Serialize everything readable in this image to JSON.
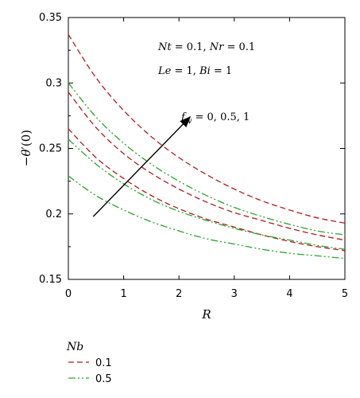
{
  "chart_data": {
    "type": "line",
    "xlabel": "R",
    "ylabel_parts": [
      "−",
      "θ",
      "′(0)"
    ],
    "xlim": [
      0,
      5
    ],
    "ylim": [
      0.15,
      0.35
    ],
    "xticks": [
      "0",
      "1",
      "2",
      "3",
      "4",
      "5"
    ],
    "yticks": [
      "0.15",
      "0.2",
      "0.25",
      "0.3",
      "0.35"
    ],
    "grid": false,
    "legend_title": "Nb",
    "legend_position": "below-left",
    "legend": [
      {
        "label": "0.1",
        "color": "#b31b1b",
        "dash": "dashed"
      },
      {
        "label": "0.5",
        "color": "#2aa52a",
        "dash": "dash-dot-dot"
      }
    ],
    "annotations": {
      "params_line1": {
        "Nt": "Nt",
        "Nt_val": " = 0.1, ",
        "Nr": "Nr",
        "Nr_val": " = 0.1"
      },
      "params_line2": {
        "Le": "Le",
        "Le_val": " = 1, ",
        "Bi": "Bi",
        "Bi_val": " = 1"
      },
      "arrow_label": {
        "f": "f",
        "sub": "w",
        "val": " = 0, 0.5, 1"
      }
    },
    "x": [
      0,
      0.5,
      1,
      1.5,
      2,
      2.5,
      3,
      3.5,
      4,
      4.5,
      5
    ],
    "series": [
      {
        "Nb": "0.1",
        "fw": "0",
        "color": "#b31b1b",
        "dash": "dashed",
        "values": [
          0.265,
          0.243,
          0.227,
          0.214,
          0.204,
          0.196,
          0.19,
          0.184,
          0.179,
          0.175,
          0.172
        ]
      },
      {
        "Nb": "0.1",
        "fw": "0.5",
        "color": "#b31b1b",
        "dash": "dashed",
        "values": [
          0.293,
          0.266,
          0.246,
          0.231,
          0.219,
          0.209,
          0.201,
          0.195,
          0.189,
          0.184,
          0.18
        ]
      },
      {
        "Nb": "0.1",
        "fw": "1",
        "color": "#b31b1b",
        "dash": "dashed",
        "values": [
          0.337,
          0.304,
          0.279,
          0.259,
          0.243,
          0.23,
          0.219,
          0.21,
          0.203,
          0.197,
          0.193
        ]
      },
      {
        "Nb": "0.5",
        "fw": "0",
        "color": "#2aa52a",
        "dash": "dash-dot-dot",
        "values": [
          0.229,
          0.214,
          0.203,
          0.194,
          0.187,
          0.181,
          0.177,
          0.173,
          0.17,
          0.168,
          0.166
        ]
      },
      {
        "Nb": "0.5",
        "fw": "0.5",
        "color": "#2aa52a",
        "dash": "dash-dot-dot",
        "values": [
          0.257,
          0.238,
          0.223,
          0.211,
          0.202,
          0.195,
          0.189,
          0.184,
          0.18,
          0.176,
          0.173
        ]
      },
      {
        "Nb": "0.5",
        "fw": "1",
        "color": "#2aa52a",
        "dash": "dash-dot-dot",
        "values": [
          0.3,
          0.274,
          0.254,
          0.238,
          0.225,
          0.214,
          0.205,
          0.198,
          0.192,
          0.187,
          0.184
        ]
      }
    ],
    "arrow": {
      "from": [
        0.45,
        0.198
      ],
      "to": [
        2.2,
        0.274
      ]
    }
  }
}
